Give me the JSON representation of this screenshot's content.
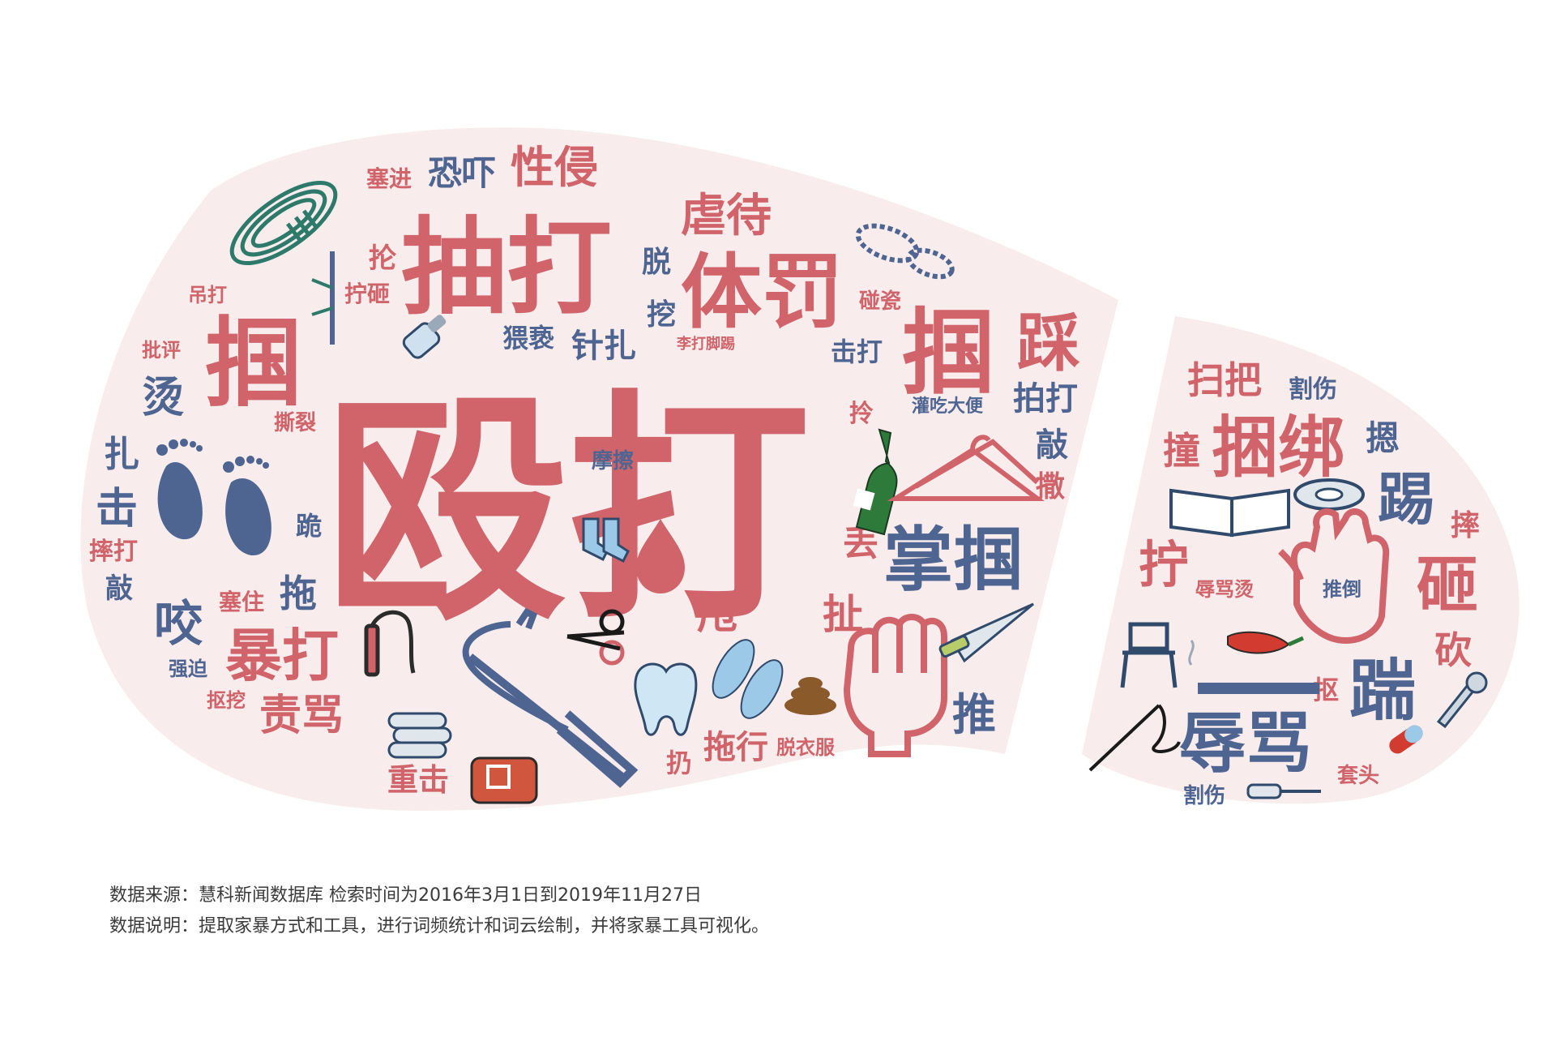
{
  "colors": {
    "red": "#d0646a",
    "blue": "#4e6592",
    "shape_fill": "#f8ecec",
    "footer_text": "#3a3a3a"
  },
  "left_cloud": {
    "words": [
      {
        "text": "殴打",
        "color": "red"
      },
      {
        "text": "抽打",
        "color": "red"
      },
      {
        "text": "体罚",
        "color": "red"
      },
      {
        "text": "虐待",
        "color": "red"
      },
      {
        "text": "性侵",
        "color": "red"
      },
      {
        "text": "恐吓",
        "color": "blue"
      },
      {
        "text": "塞进",
        "color": "red"
      },
      {
        "text": "抡",
        "color": "red"
      },
      {
        "text": "拧砸",
        "color": "red"
      },
      {
        "text": "吊打",
        "color": "red"
      },
      {
        "text": "掴",
        "color": "red"
      },
      {
        "text": "掴",
        "color": "red"
      },
      {
        "text": "踩",
        "color": "red"
      },
      {
        "text": "脱",
        "color": "blue"
      },
      {
        "text": "挖",
        "color": "blue"
      },
      {
        "text": "猥亵",
        "color": "blue"
      },
      {
        "text": "针扎",
        "color": "blue"
      },
      {
        "text": "李打脚踢",
        "color": "red"
      },
      {
        "text": "碰瓷",
        "color": "red"
      },
      {
        "text": "击打",
        "color": "blue"
      },
      {
        "text": "拍打",
        "color": "blue"
      },
      {
        "text": "灌吃大便",
        "color": "blue"
      },
      {
        "text": "拎",
        "color": "red"
      },
      {
        "text": "敲",
        "color": "blue"
      },
      {
        "text": "撒",
        "color": "red"
      },
      {
        "text": "批评",
        "color": "red"
      },
      {
        "text": "烫",
        "color": "blue"
      },
      {
        "text": "撕裂",
        "color": "red"
      },
      {
        "text": "扎",
        "color": "blue"
      },
      {
        "text": "击",
        "color": "blue"
      },
      {
        "text": "摔打",
        "color": "red"
      },
      {
        "text": "敲",
        "color": "blue"
      },
      {
        "text": "跪",
        "color": "blue"
      },
      {
        "text": "摩擦",
        "color": "blue"
      },
      {
        "text": "掌掴",
        "color": "blue"
      },
      {
        "text": "丢",
        "color": "red"
      },
      {
        "text": "塞住",
        "color": "red"
      },
      {
        "text": "拖",
        "color": "blue"
      },
      {
        "text": "咬",
        "color": "blue"
      },
      {
        "text": "暴打",
        "color": "red"
      },
      {
        "text": "强迫",
        "color": "blue"
      },
      {
        "text": "抠挖",
        "color": "red"
      },
      {
        "text": "责骂",
        "color": "red"
      },
      {
        "text": "甩",
        "color": "red"
      },
      {
        "text": "扯",
        "color": "red"
      },
      {
        "text": "推",
        "color": "blue"
      },
      {
        "text": "重击",
        "color": "red"
      },
      {
        "text": "扔",
        "color": "red"
      },
      {
        "text": "拖行",
        "color": "red"
      },
      {
        "text": "脱衣服",
        "color": "red"
      }
    ]
  },
  "right_cloud": {
    "words": [
      {
        "text": "扫把",
        "color": "red"
      },
      {
        "text": "割伤",
        "color": "blue"
      },
      {
        "text": "撞",
        "color": "red"
      },
      {
        "text": "捆绑",
        "color": "red"
      },
      {
        "text": "摁",
        "color": "blue"
      },
      {
        "text": "踢",
        "color": "blue"
      },
      {
        "text": "拧",
        "color": "red"
      },
      {
        "text": "摔",
        "color": "red"
      },
      {
        "text": "辱骂烫",
        "color": "red"
      },
      {
        "text": "推倒",
        "color": "blue"
      },
      {
        "text": "砸",
        "color": "red"
      },
      {
        "text": "砍",
        "color": "red"
      },
      {
        "text": "踹",
        "color": "blue"
      },
      {
        "text": "抠",
        "color": "red"
      },
      {
        "text": "辱骂",
        "color": "blue"
      },
      {
        "text": "割伤",
        "color": "blue"
      },
      {
        "text": "套头",
        "color": "red"
      }
    ]
  },
  "icons": [
    "rope-icon",
    "bamboo-stick-icon",
    "salt-shaker-icon",
    "shoe-sole-print-icon",
    "footprints-icon",
    "socks-icon",
    "blood-drop-icon",
    "wine-bottle-icon",
    "clothes-hanger-icon",
    "fist-icon",
    "kitchen-knife-icon",
    "electric-cable-icon",
    "iron-bar-icon",
    "scissors-icon",
    "tooth-icon",
    "flip-flops-icon",
    "poop-icon",
    "pipes-icon",
    "belt-icon",
    "book-icon",
    "tape-icon",
    "hand-icon",
    "chair-icon",
    "chili-pepper-icon",
    "cigarette-icon",
    "needle-thread-icon",
    "wrench-icon",
    "pill-icon",
    "screwdriver-icon"
  ],
  "footer": {
    "source": "数据来源：慧科新闻数据库 检索时间为2016年3月1日到2019年11月27日",
    "note": "数据说明：提取家暴方式和工具，进行词频统计和词云绘制，并将家暴工具可视化。"
  }
}
